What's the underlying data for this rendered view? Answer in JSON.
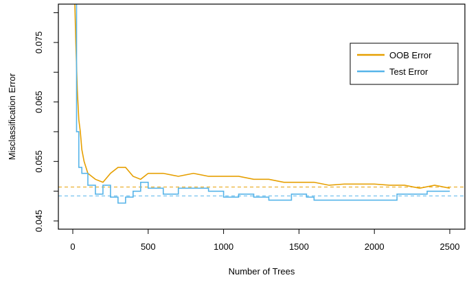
{
  "chart_data": {
    "type": "line",
    "title": "",
    "xlabel": "Number of Trees",
    "ylabel": "Misclassification Error",
    "xlim": [
      -100,
      2600
    ],
    "ylim": [
      0.0436,
      0.0815
    ],
    "xticks": [
      0,
      500,
      1000,
      1500,
      2000,
      2500
    ],
    "xtick_labels": [
      "0",
      "500",
      "1000",
      "1500",
      "2000",
      "2500"
    ],
    "yticks": [
      0.045,
      0.05,
      0.055,
      0.06,
      0.065,
      0.07,
      0.075,
      0.08
    ],
    "ytick_labels": [
      "0.045",
      "",
      "0.055",
      "",
      "0.065",
      "",
      "0.075",
      ""
    ],
    "legend_position": "top-right",
    "series": [
      {
        "name": "OOB Error",
        "color": "#E69F00",
        "reference": 0.0507,
        "x": [
          10,
          20,
          30,
          40,
          50,
          60,
          75,
          100,
          125,
          150,
          200,
          250,
          300,
          350,
          400,
          450,
          500,
          600,
          700,
          800,
          900,
          1000,
          1100,
          1200,
          1300,
          1400,
          1500,
          1600,
          1700,
          1800,
          1900,
          2000,
          2100,
          2200,
          2300,
          2400,
          2500
        ],
        "y": [
          0.085,
          0.075,
          0.067,
          0.062,
          0.06,
          0.057,
          0.055,
          0.053,
          0.0525,
          0.052,
          0.0515,
          0.053,
          0.054,
          0.054,
          0.0525,
          0.052,
          0.053,
          0.053,
          0.0525,
          0.053,
          0.0525,
          0.0525,
          0.0525,
          0.052,
          0.052,
          0.0515,
          0.0515,
          0.0515,
          0.051,
          0.0512,
          0.0512,
          0.0512,
          0.051,
          0.051,
          0.0505,
          0.051,
          0.0505
        ]
      },
      {
        "name": "Test Error",
        "color": "#56B4E9",
        "reference": 0.0492,
        "x": [
          10,
          25,
          40,
          60,
          100,
          150,
          200,
          250,
          300,
          350,
          400,
          450,
          500,
          600,
          700,
          800,
          900,
          1000,
          1100,
          1200,
          1300,
          1400,
          1450,
          1550,
          1600,
          2100,
          2150,
          2300,
          2350,
          2500
        ],
        "y": [
          0.085,
          0.06,
          0.054,
          0.053,
          0.051,
          0.0495,
          0.051,
          0.049,
          0.048,
          0.049,
          0.05,
          0.0515,
          0.0505,
          0.0495,
          0.0505,
          0.0505,
          0.05,
          0.049,
          0.0495,
          0.049,
          0.0485,
          0.0485,
          0.0495,
          0.049,
          0.0485,
          0.0485,
          0.0495,
          0.0495,
          0.05,
          0.05
        ]
      }
    ]
  }
}
